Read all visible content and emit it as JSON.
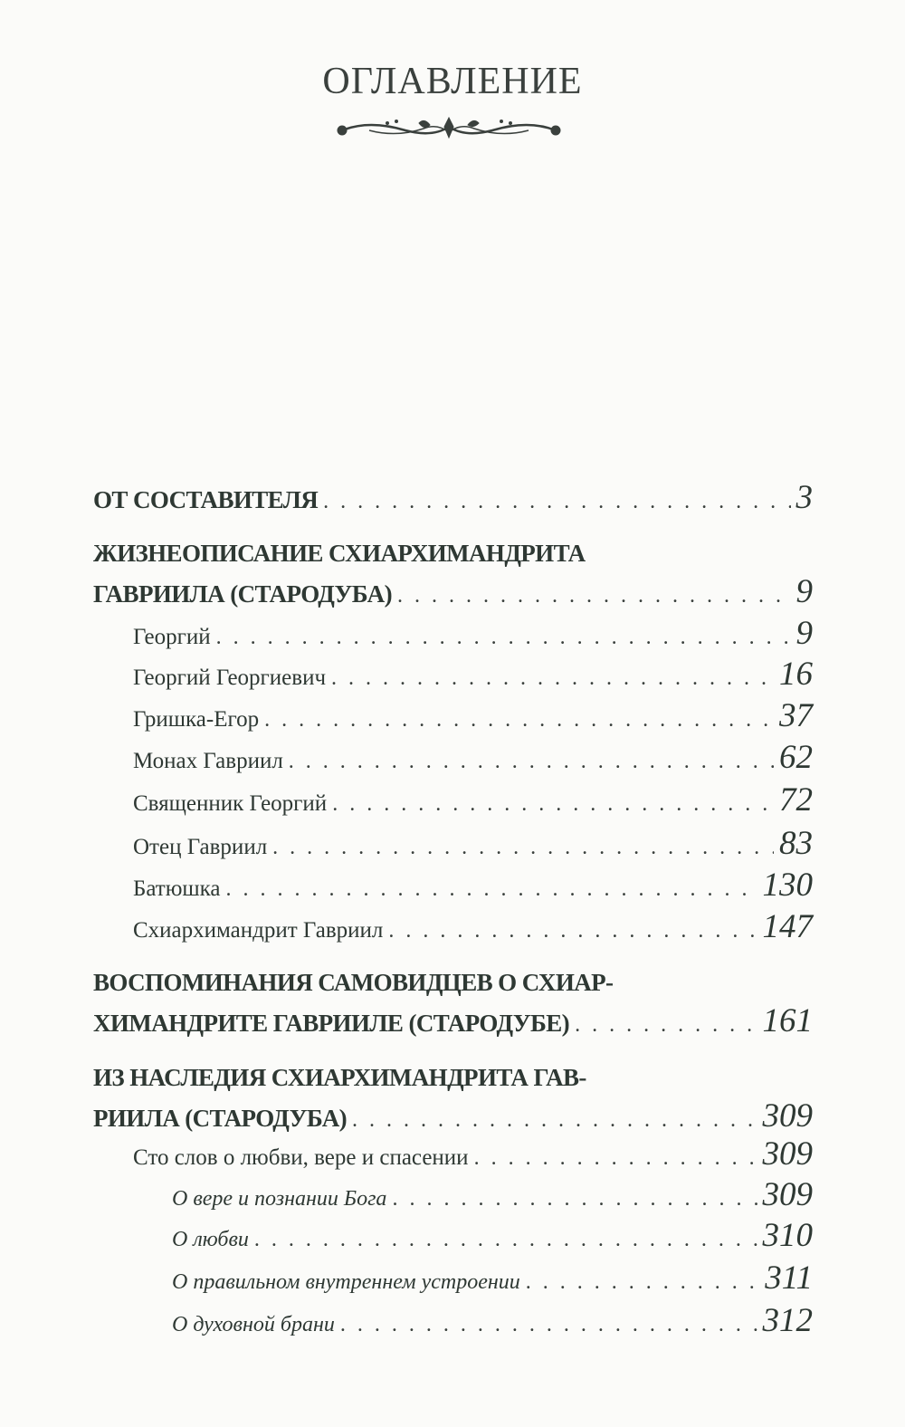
{
  "header": {
    "title": "ОГЛАВЛЕНИЕ",
    "ornament_icon": "decorative-scroll-ornament"
  },
  "text_color": "#2e3833",
  "entries": [
    {
      "level": 0,
      "lines": [
        "ОТ СОСТАВИТЕЛЯ"
      ],
      "page": "3"
    },
    {
      "level": 0,
      "lines": [
        "ЖИЗНЕОПИСАНИЕ СХИАРХИМАНДРИТА",
        "ГАВРИИЛА (СТАРОДУБА)"
      ],
      "page": "9"
    },
    {
      "level": 1,
      "lines": [
        "Георгий"
      ],
      "page": "9"
    },
    {
      "level": 1,
      "lines": [
        "Георгий Георгиевич"
      ],
      "page": "16"
    },
    {
      "level": 1,
      "lines": [
        "Гришка-Егор"
      ],
      "page": "37"
    },
    {
      "level": 1,
      "lines": [
        "Монах Гавриил"
      ],
      "page": "62"
    },
    {
      "level": 1,
      "lines": [
        "Священник Георгий"
      ],
      "page": "72"
    },
    {
      "level": 1,
      "lines": [
        "Отец Гавриил"
      ],
      "page": "83"
    },
    {
      "level": 1,
      "lines": [
        "Батюшка"
      ],
      "page": "130"
    },
    {
      "level": 1,
      "lines": [
        "Схиархимандрит Гавриил"
      ],
      "page": "147"
    },
    {
      "level": 0,
      "lines": [
        "ВОСПОМИНАНИЯ САМОВИДЦЕВ О СХИАР-",
        "ХИМАНДРИТЕ ГАВРИИЛЕ (СТАРОДУБЕ)"
      ],
      "page": "161"
    },
    {
      "level": 0,
      "lines": [
        "ИЗ НАСЛЕДИЯ СХИАРХИМАНДРИТА ГАВ-",
        "РИИЛА (СТАРОДУБА)"
      ],
      "page": "309"
    },
    {
      "level": 1,
      "lines": [
        "Сто слов о любви, вере и спасении"
      ],
      "page": "309"
    },
    {
      "level": 2,
      "lines": [
        "О вере и познании Бога"
      ],
      "page": "309"
    },
    {
      "level": 2,
      "lines": [
        "О любви"
      ],
      "page": "310"
    },
    {
      "level": 2,
      "lines": [
        "О правильном внутреннем устроении"
      ],
      "page": "311"
    },
    {
      "level": 2,
      "lines": [
        "О духовной брани"
      ],
      "page": "312"
    }
  ]
}
